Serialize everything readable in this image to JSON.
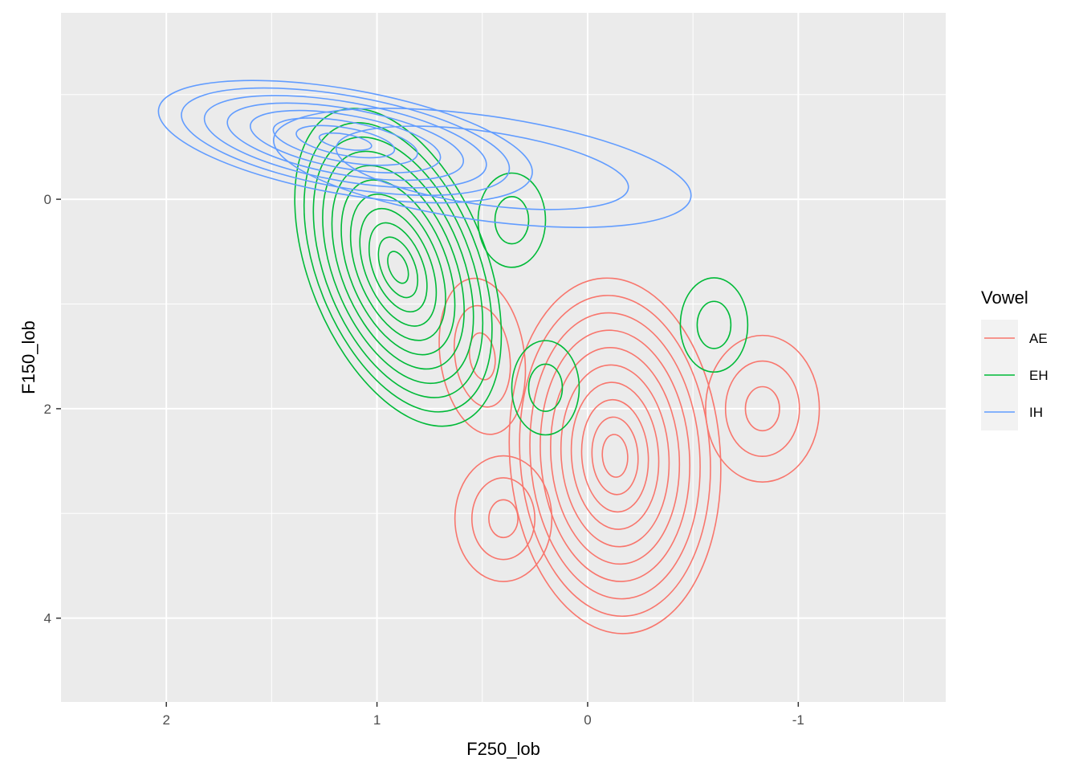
{
  "chart_data": {
    "type": "contour",
    "x": {
      "label": "F250_lob",
      "reversed": true,
      "range": [
        2.5,
        -1.7
      ],
      "major_ticks": [
        2,
        1,
        0,
        -1
      ],
      "tick_labels": [
        "2",
        "1",
        "0",
        "-1"
      ],
      "minor_ticks": [
        1.5,
        0.5,
        -0.5,
        -1.5
      ]
    },
    "y": {
      "label": "F150_lob",
      "reversed": true,
      "range": [
        -1.78,
        4.8
      ],
      "major_ticks": [
        0,
        2,
        4
      ],
      "tick_labels": [
        "0",
        "2",
        "4"
      ],
      "minor_ticks": [
        -1,
        1,
        3
      ]
    },
    "grid": true,
    "legend": {
      "title": "Vowel",
      "position": "right"
    },
    "series": [
      {
        "name": "AE",
        "color": "#F8766D",
        "components": [
          {
            "cx": -0.13,
            "cy": 2.45,
            "rx": 0.5,
            "ry": 1.7,
            "tilt": -4,
            "rings": 10,
            "min_frac": 0.12
          },
          {
            "cx": 0.4,
            "cy": 3.05,
            "rx": 0.23,
            "ry": 0.6,
            "tilt": 0,
            "rings": 3,
            "min_frac": 0.3
          },
          {
            "cx": 0.5,
            "cy": 1.5,
            "rx": 0.2,
            "ry": 0.75,
            "tilt": -8,
            "rings": 3,
            "min_frac": 0.3
          },
          {
            "cx": -0.83,
            "cy": 2.0,
            "rx": 0.27,
            "ry": 0.7,
            "tilt": 0,
            "rings": 3,
            "min_frac": 0.3
          }
        ]
      },
      {
        "name": "EH",
        "color": "#00BA38",
        "components": [
          {
            "cx": 0.9,
            "cy": 0.65,
            "rx": 0.42,
            "ry": 1.6,
            "tilt": -22,
            "rings": 11,
            "min_frac": 0.1
          },
          {
            "cx": 0.36,
            "cy": 0.2,
            "rx": 0.16,
            "ry": 0.45,
            "tilt": 0,
            "rings": 2,
            "min_frac": 0.5
          },
          {
            "cx": 0.2,
            "cy": 1.8,
            "rx": 0.16,
            "ry": 0.45,
            "tilt": 0,
            "rings": 2,
            "min_frac": 0.5
          },
          {
            "cx": -0.6,
            "cy": 1.2,
            "rx": 0.16,
            "ry": 0.45,
            "tilt": 0,
            "rings": 2,
            "min_frac": 0.5
          }
        ]
      },
      {
        "name": "IH",
        "color": "#619CFF",
        "components": [
          {
            "cx": 1.15,
            "cy": -0.55,
            "rx": 0.9,
            "ry": 0.5,
            "tilt": 10,
            "rings": 8,
            "min_frac": 0.14
          },
          {
            "cx": 0.5,
            "cy": -0.3,
            "rx": 1.0,
            "ry": 0.5,
            "tilt": 8,
            "rings": 2,
            "min_frac": 0.7
          }
        ]
      }
    ]
  }
}
